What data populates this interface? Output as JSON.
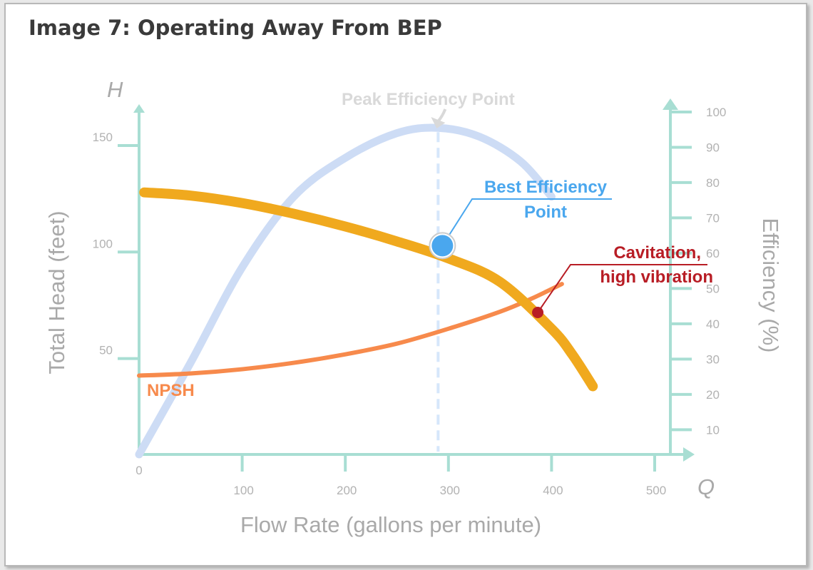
{
  "title": "Image 7: Operating Away From BEP",
  "colors": {
    "axis": "#a8ded3",
    "head": "#f0a91e",
    "efficiency": "#cddcf5",
    "npsh": "#f78a4c",
    "bep": "#4aa7ee",
    "cavitation": "#b81d25",
    "axis_text": "#a9a9a9",
    "tick_text": "#b2b2b2"
  },
  "chart_data": {
    "type": "line",
    "xlabel": "Flow Rate (gallons per minute)",
    "x_symbol": "Q",
    "ylabel": "Total Head (feet)",
    "y_symbol": "H",
    "y2label": "Efficiency (%)",
    "xlim": [
      0,
      500
    ],
    "ylim": [
      5,
      160
    ],
    "y2lim": [
      3,
      101
    ],
    "x_ticks": [
      0,
      100,
      200,
      300,
      400,
      500
    ],
    "y_ticks": [
      50,
      100,
      150
    ],
    "y2_ticks": [
      10,
      20,
      30,
      40,
      50,
      60,
      70,
      80,
      90,
      100
    ],
    "series": [
      {
        "name": "",
        "axis": "left",
        "x": [
          5,
          50,
          100,
          150,
          200,
          250,
          300,
          350,
          400,
          420,
          440
        ],
        "y": [
          128,
          126.5,
          123,
          118,
          112,
          105,
          97,
          86,
          64,
          52,
          37
        ]
      },
      {
        "name": "NPSH",
        "axis": "left",
        "x": [
          0,
          50,
          100,
          150,
          200,
          250,
          300,
          350,
          380,
          410
        ],
        "y": [
          42,
          43,
          45,
          48,
          52,
          57,
          64,
          72,
          78,
          85
        ]
      },
      {
        "name": "",
        "axis": "right",
        "x": [
          0,
          50,
          100,
          150,
          200,
          250,
          290,
          330,
          370,
          400
        ],
        "y": [
          3,
          29,
          56,
          76,
          87,
          94,
          95.5,
          93,
          86,
          76
        ]
      }
    ],
    "annotations": [
      {
        "text": "Peak Efficiency Point",
        "x": 290,
        "y2": 95.5
      },
      {
        "text_lines": [
          "Best Efficiency",
          "Point"
        ],
        "x": 290,
        "y": 103
      },
      {
        "text_lines": [
          "Cavitation,",
          "high vibration"
        ],
        "x": 388,
        "y": 72
      }
    ],
    "bep_x": 290,
    "grid": false,
    "legend": "none"
  }
}
